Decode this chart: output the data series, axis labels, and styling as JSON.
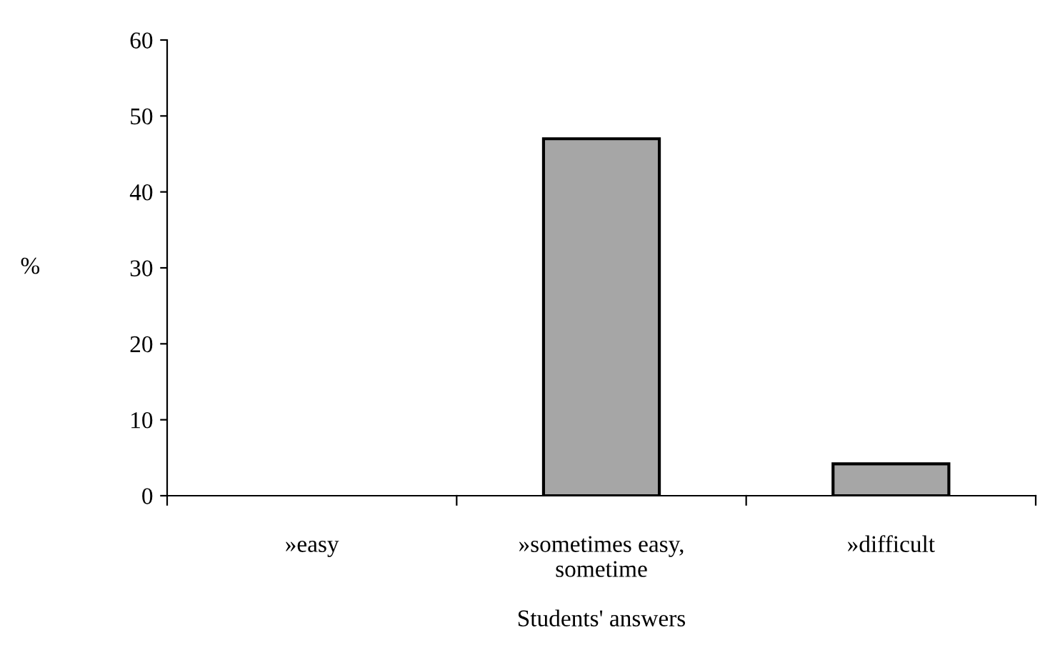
{
  "chart_data": {
    "type": "bar",
    "xlabel": "Students' answers",
    "ylabel": "%",
    "categories": [
      "»easy",
      "»sometimes easy,\nsometime",
      "»difficult"
    ],
    "values": [
      0,
      47,
      4.2
    ],
    "color": "#a6a6a6",
    "ylim": [
      0,
      60
    ],
    "yticks": [
      0,
      10,
      20,
      30,
      40,
      50,
      60
    ],
    "grid": false,
    "legend": false
  }
}
